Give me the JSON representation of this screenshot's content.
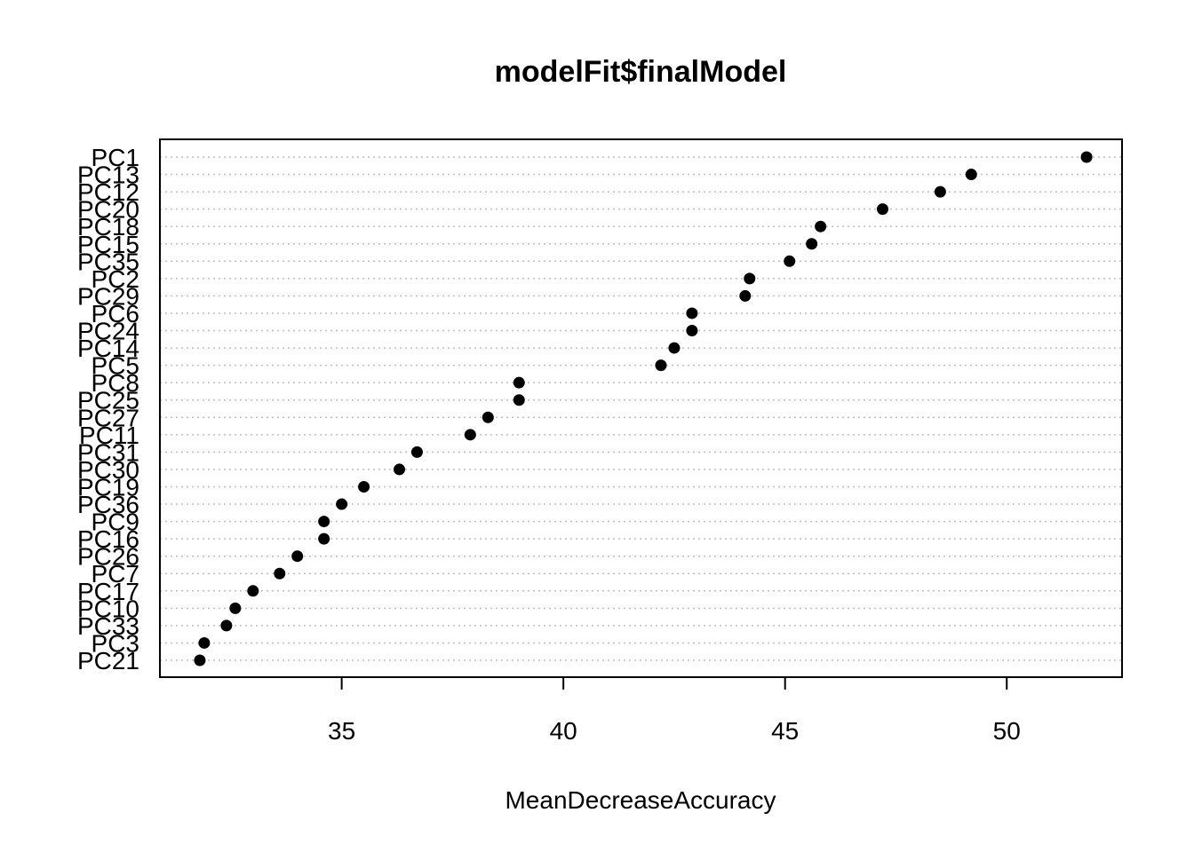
{
  "chart_data": {
    "type": "scatter",
    "title": "modelFit$finalModel",
    "xlabel": "MeanDecreaseAccuracy",
    "ylabel": "",
    "xlim": [
      30.9,
      52.6
    ],
    "xticks": [
      35,
      40,
      45,
      50
    ],
    "grid": "horizontal dotted",
    "legend": "none",
    "colors": {
      "point": "#000000",
      "grid": "#bebebe",
      "axis": "#000000"
    },
    "categories": [
      "PC1",
      "PC13",
      "PC12",
      "PC20",
      "PC18",
      "PC15",
      "PC35",
      "PC2",
      "PC29",
      "PC6",
      "PC24",
      "PC14",
      "PC5",
      "PC8",
      "PC25",
      "PC27",
      "PC11",
      "PC31",
      "PC30",
      "PC19",
      "PC36",
      "PC9",
      "PC16",
      "PC26",
      "PC7",
      "PC17",
      "PC10",
      "PC33",
      "PC3",
      "PC21"
    ],
    "values": [
      51.8,
      49.2,
      48.5,
      47.2,
      45.8,
      45.6,
      45.1,
      44.2,
      44.1,
      42.9,
      42.9,
      42.5,
      42.2,
      39.0,
      39.0,
      38.3,
      37.9,
      36.7,
      36.3,
      35.5,
      35.0,
      34.6,
      34.6,
      34.0,
      33.6,
      33.0,
      32.6,
      32.4,
      31.9,
      31.8
    ]
  }
}
